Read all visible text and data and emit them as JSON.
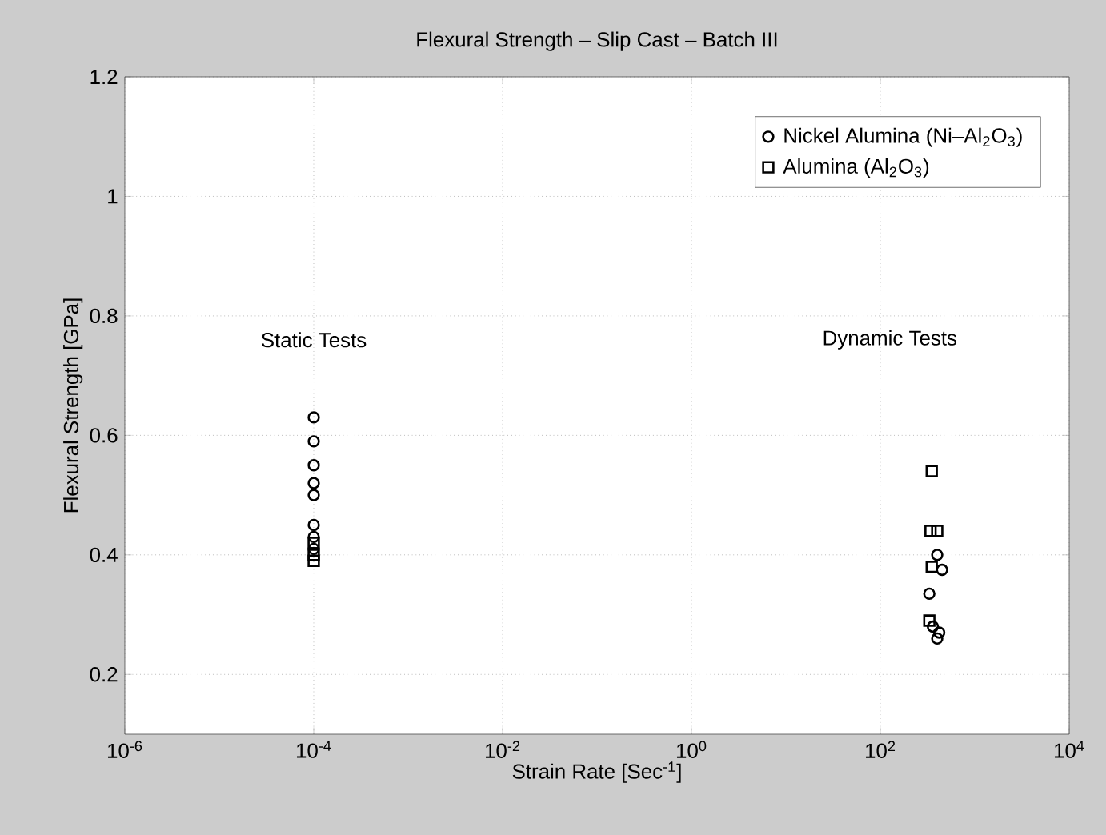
{
  "chart_data": {
    "type": "scatter",
    "title": "Flexural Strength – Slip Cast – Batch III",
    "xlabel": "Strain Rate [Sec$^{-1}$]",
    "ylabel": "Flexural Strength [GPa]",
    "log": "x",
    "xlim": [
      1e-06,
      10000
    ],
    "ylim": [
      0.1,
      1.2
    ],
    "xticks": [
      {
        "value": 1e-06,
        "label": "10$^{-6}$"
      },
      {
        "value": 0.0001,
        "label": "10$^{-4}$"
      },
      {
        "value": 0.01,
        "label": "10$^{-2}$"
      },
      {
        "value": 1,
        "label": "10$^{0}$"
      },
      {
        "value": 100,
        "label": "10$^{2}$"
      },
      {
        "value": 10000,
        "label": "10$^{4}$"
      }
    ],
    "yticks": [
      0.2,
      0.4,
      0.6,
      0.8,
      1,
      1.2
    ],
    "grid": true,
    "legend": "top right",
    "series": [
      {
        "name": "Nickel Alumina (Ni–Al$_{2}$O$_{3}$)",
        "color": "#000000",
        "marker": "circle",
        "x": [
          0.0001,
          0.0001,
          0.0001,
          0.0001,
          0.0001,
          0.0001,
          0.0001,
          0.0001,
          400,
          450,
          330,
          360,
          420,
          400
        ],
        "values": [
          0.63,
          0.59,
          0.55,
          0.52,
          0.5,
          0.45,
          0.43,
          0.41,
          0.4,
          0.375,
          0.335,
          0.28,
          0.27,
          0.26
        ]
      },
      {
        "name": "Alumina (Al$_{2}$O$_{3}$)",
        "color": "#000000",
        "marker": "square",
        "x": [
          0.0001,
          0.0001,
          0.0001,
          350,
          340,
          400,
          350,
          330
        ],
        "values": [
          0.42,
          0.4,
          0.39,
          0.54,
          0.44,
          0.44,
          0.38,
          0.29
        ]
      }
    ],
    "annotations": [
      "Static Tests",
      "Dynamic Tests"
    ]
  }
}
